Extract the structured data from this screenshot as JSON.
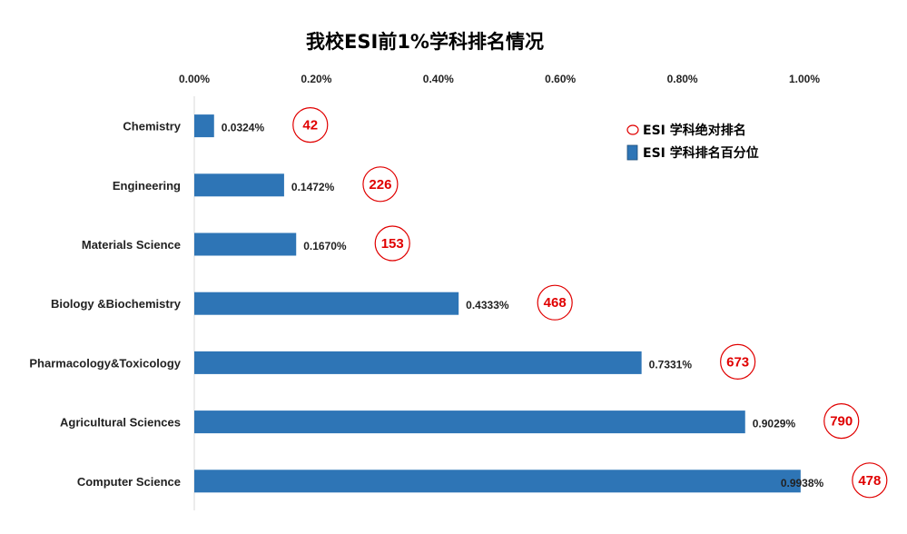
{
  "chart_data": {
    "type": "bar",
    "orientation": "horizontal",
    "title": "我校ESI前1%学科排名情况",
    "x_axis_position": "top",
    "xlim": [
      0,
      1.0
    ],
    "x_ticks": [
      0,
      0.2,
      0.4,
      0.6,
      0.8,
      1.0
    ],
    "x_tick_labels": [
      "0.00%",
      "0.20%",
      "0.40%",
      "0.60%",
      "0.80%",
      "1.00%"
    ],
    "grid": false,
    "legend_position": "top-right",
    "categories": [
      "Chemistry",
      "Engineering",
      "Materials Science",
      "Biology &Biochemistry",
      "Pharmacology&Toxicology",
      "Agricultural Sciences",
      "Computer Science"
    ],
    "series": [
      {
        "name": "ESI 学科排名百分位",
        "values": [
          0.0324,
          0.1472,
          0.167,
          0.4333,
          0.7331,
          0.9029,
          0.9938
        ],
        "labels": [
          "0.0324%",
          "0.1472%",
          "0.1670%",
          "0.4333%",
          "0.7331%",
          "0.9029%",
          "0.9938%"
        ],
        "color": "#2e75b6"
      },
      {
        "name": "ESI 学科绝对排名",
        "values": [
          42,
          226,
          153,
          468,
          673,
          790,
          478
        ],
        "marker": "circle",
        "color": "#e00000"
      }
    ]
  }
}
